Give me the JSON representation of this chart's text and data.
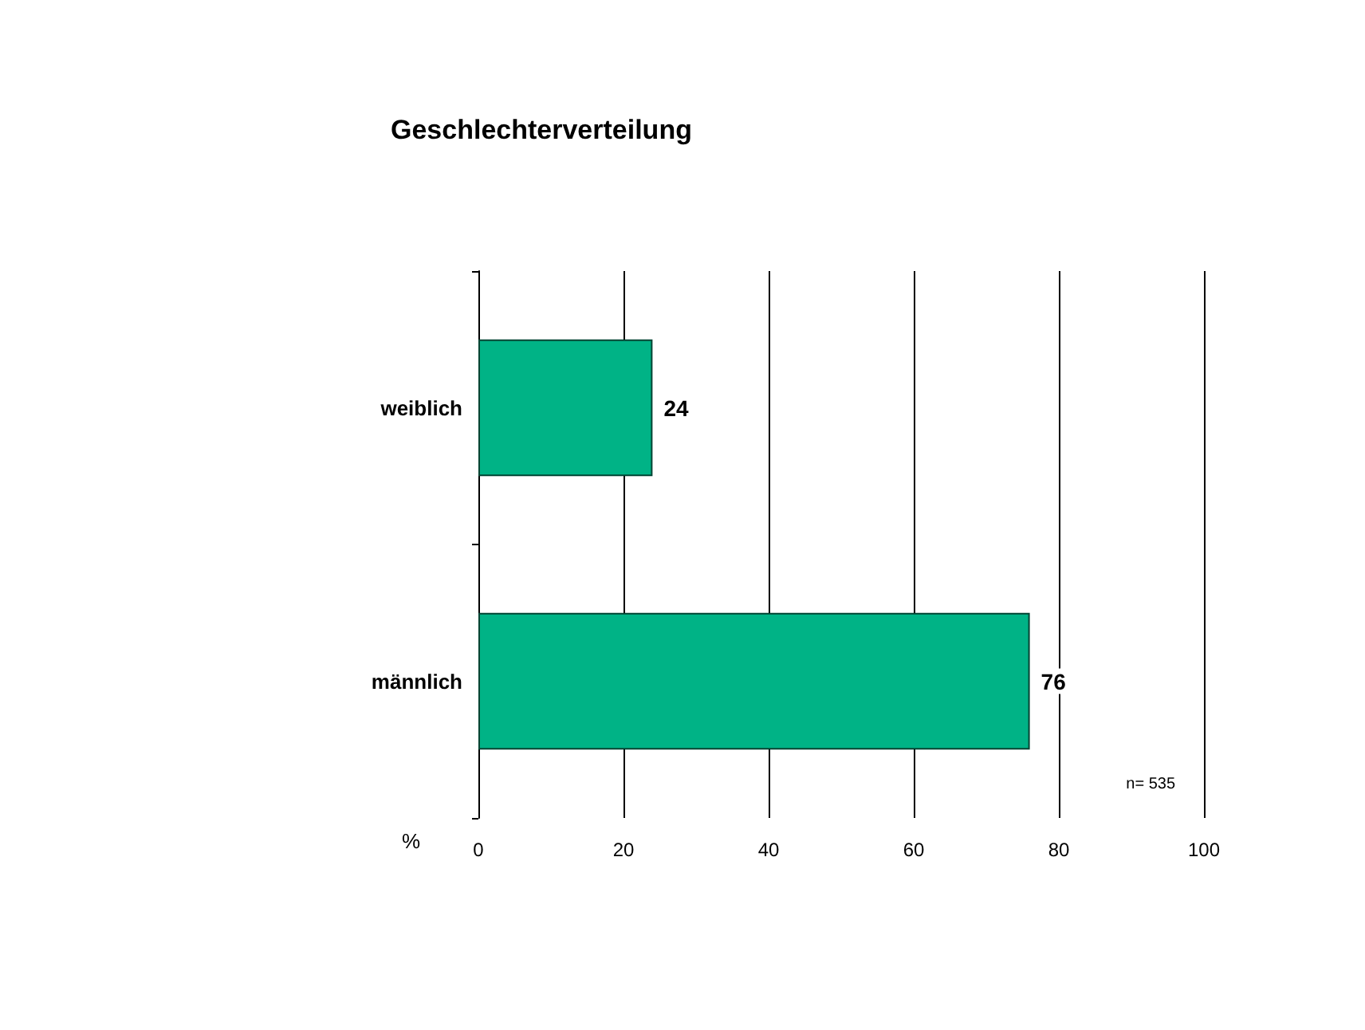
{
  "chart_data": {
    "type": "bar",
    "orientation": "horizontal",
    "title": "Geschlechterverteilung",
    "xlabel": "%",
    "categories": [
      "weiblich",
      "männlich"
    ],
    "values": [
      24,
      76
    ],
    "color": "#00b386",
    "xlim": [
      0,
      100
    ],
    "xticks": [
      0,
      20,
      40,
      60,
      80,
      100
    ],
    "grid": "x",
    "data_labels": true,
    "annotations": [
      "n= 535"
    ]
  }
}
